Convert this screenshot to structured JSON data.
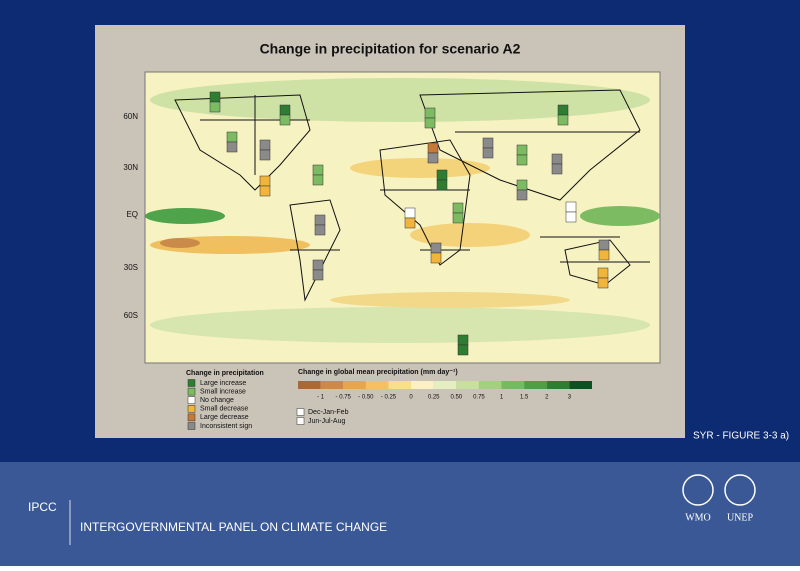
{
  "figure": {
    "title": "Change in precipitation for scenario A2",
    "lat_labels": [
      "60N",
      "30N",
      "EQ",
      "30S",
      "60S"
    ],
    "legend_title": "Change in precipitation",
    "legend_items": [
      "Large increase",
      "Small increase",
      "No change",
      "Small decrease",
      "Large decrease",
      "Inconsistent sign"
    ],
    "colorbar_title": "Change in global mean precipitation (mm day⁻¹)",
    "colorbar_labels": [
      "- 1",
      "- 0.75",
      "- 0.50",
      "- 0.25",
      "0",
      "0.25",
      "0.50",
      "0.75",
      "1",
      "1.5",
      "2",
      "3"
    ],
    "seasons": [
      "Dec-Jan-Feb",
      "Jun-Jul-Aug"
    ],
    "caption": "SYR - FIGURE 3-3 a)"
  },
  "footer": {
    "org_short": "IPCC",
    "org_full": "INTERGOVERNMENTAL PANEL ON CLIMATE CHANGE",
    "logos": [
      "WMO",
      "UNEP"
    ]
  }
}
